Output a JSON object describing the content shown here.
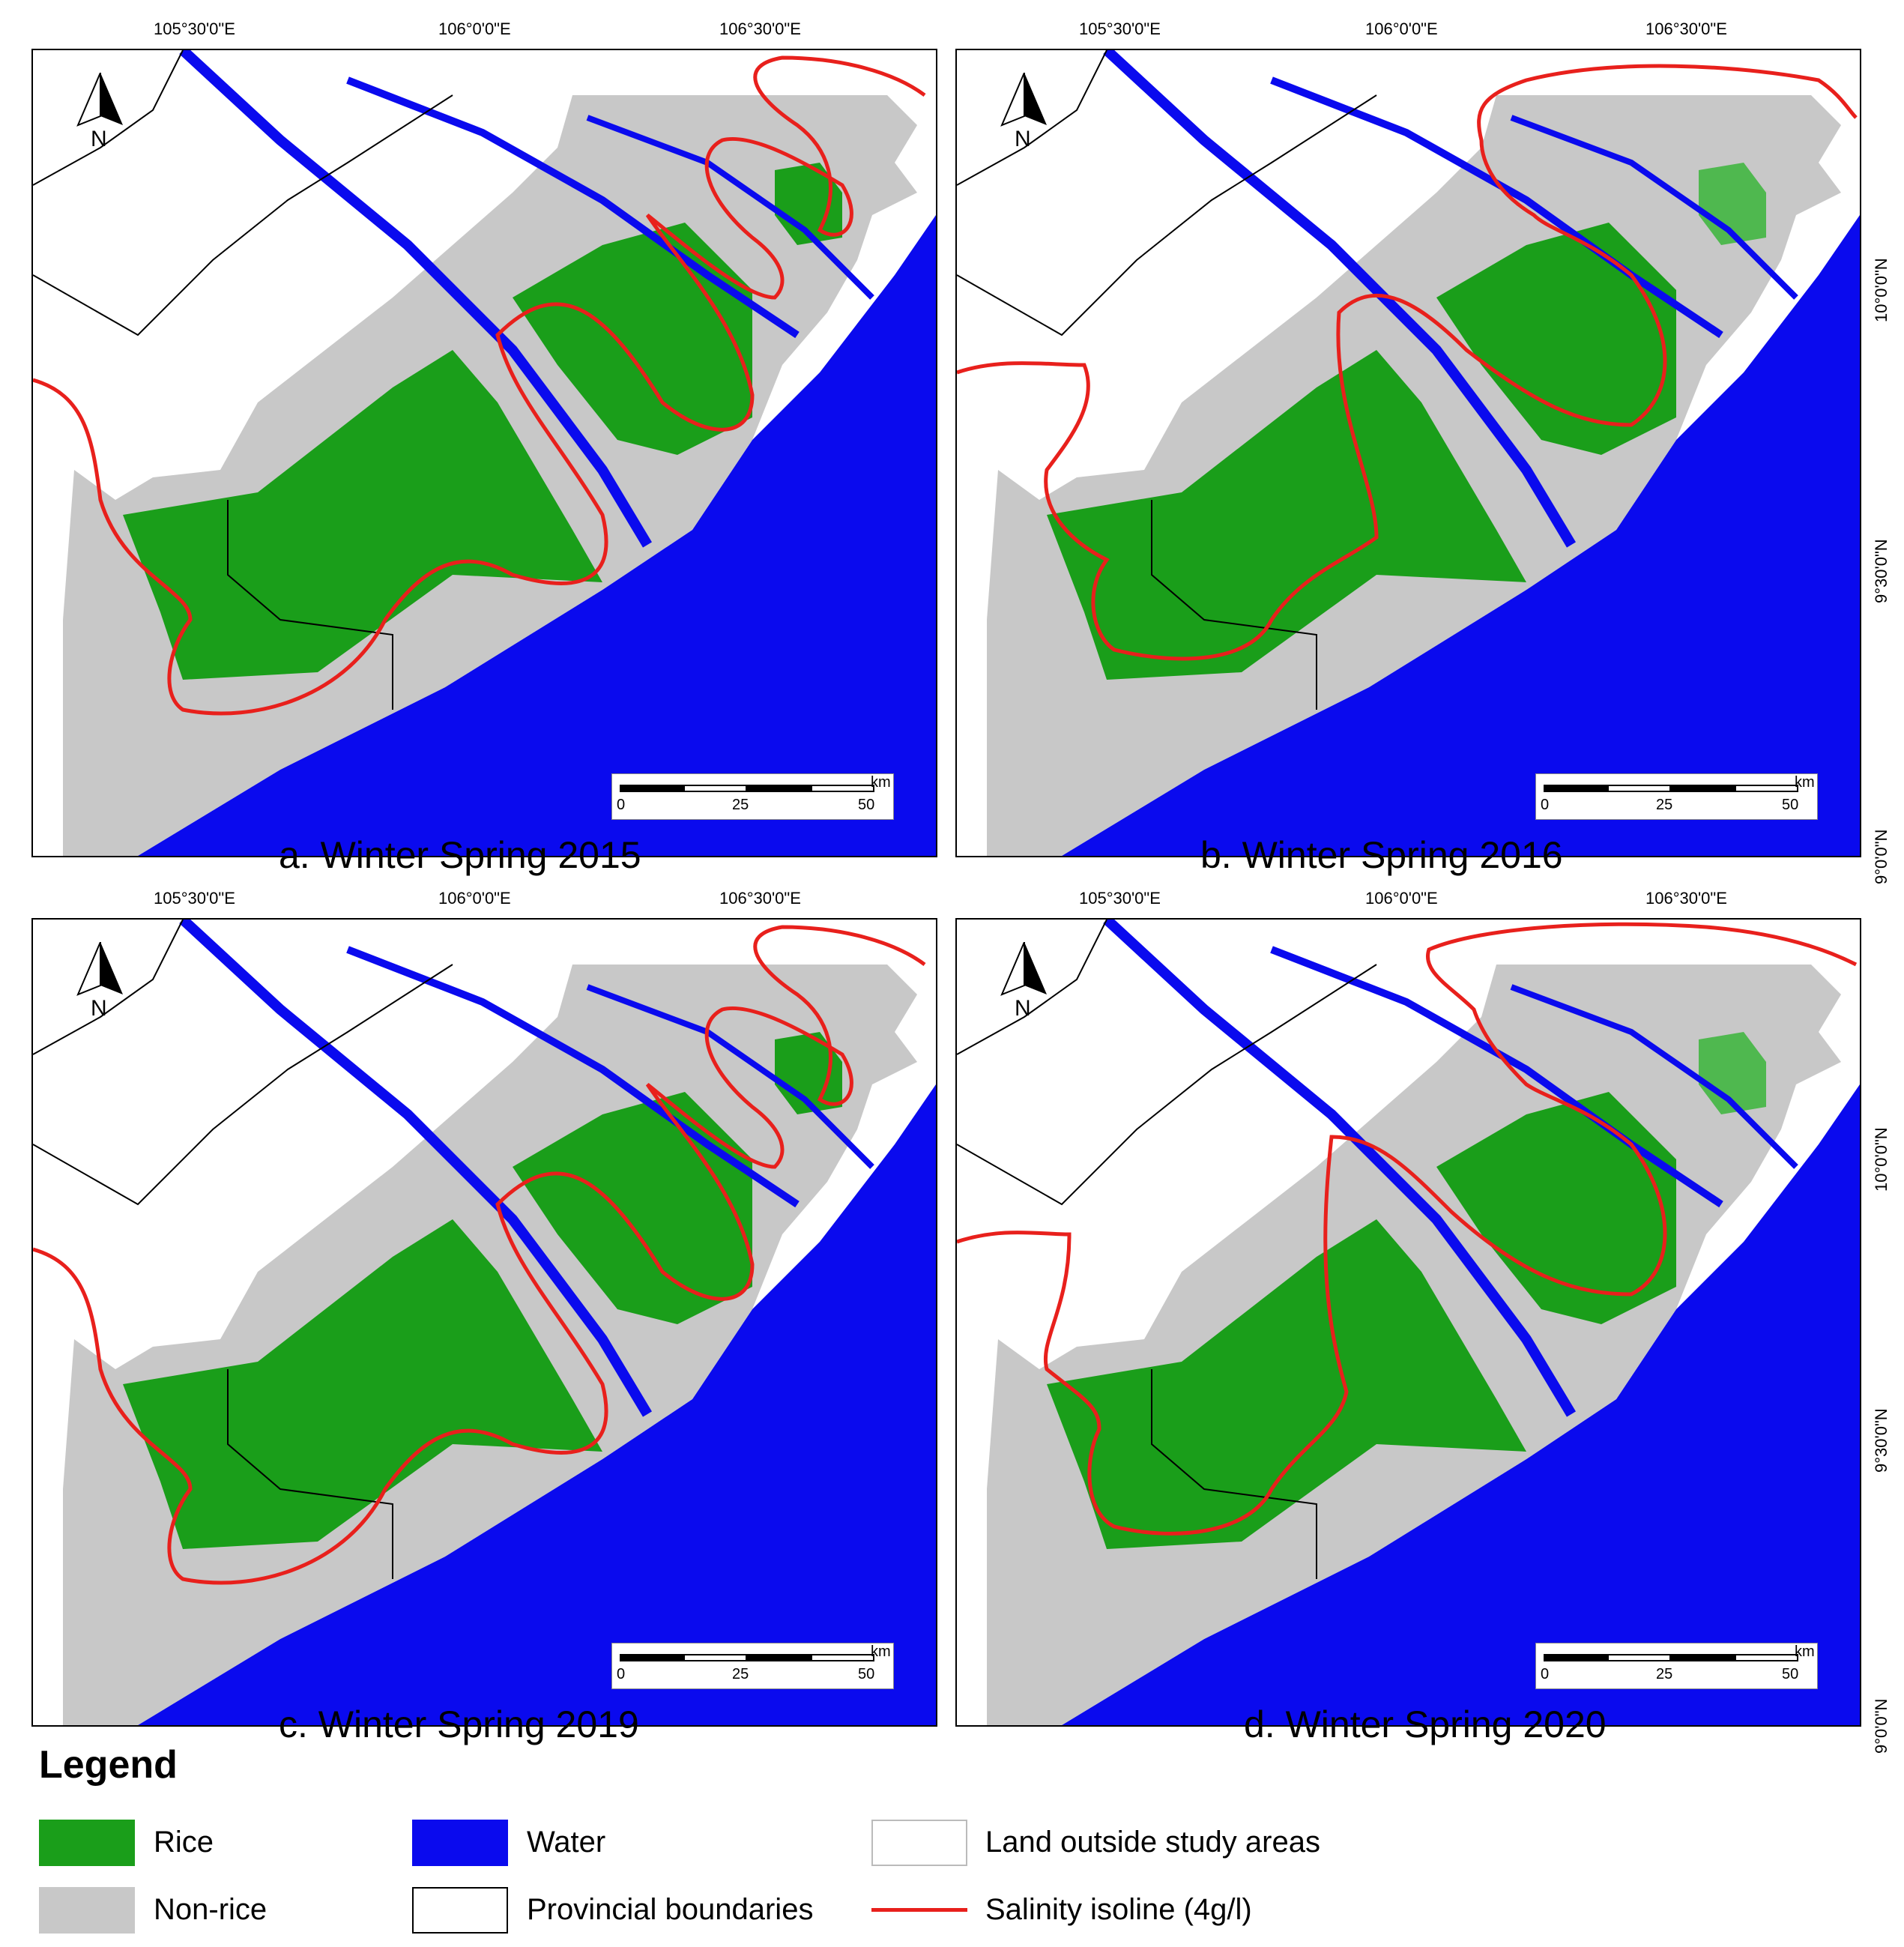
{
  "coords": {
    "lon": [
      "105°30'0\"E",
      "106°0'0\"E",
      "106°30'0\"E"
    ],
    "lat": [
      "10°0'0\"N",
      "9°30'0\"N",
      "9°0'0\"N"
    ]
  },
  "north_label": "N",
  "scale": {
    "unit": "km",
    "ticks": [
      "0",
      "25",
      "50"
    ]
  },
  "panels": [
    {
      "caption": "a. Winter Spring 2015"
    },
    {
      "caption": "b. Winter Spring 2016"
    },
    {
      "caption": "c. Winter Spring 2019"
    },
    {
      "caption": "d. Winter Spring 2020"
    }
  ],
  "legend": {
    "title": "Legend",
    "rice": "Rice",
    "nonrice": "Non-rice",
    "water": "Water",
    "boundaries": "Provincial boundaries",
    "outside": "Land outside study areas",
    "salinity": "Salinity isoline (4g/l)"
  },
  "colors": {
    "rice": "#1a9e1a",
    "nonrice": "#c8c8c8",
    "water": "#0a0aee",
    "isoline": "#e8201c"
  }
}
